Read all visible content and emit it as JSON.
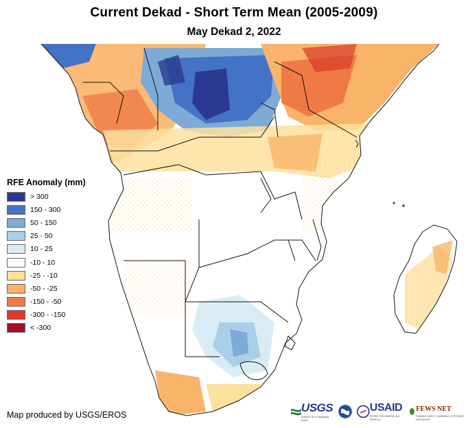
{
  "header": {
    "title": "Current Dekad - Short Term Mean (2005-2009)",
    "subtitle": "May Dekad 2, 2022"
  },
  "legend": {
    "title": "RFE Anomaly (mm)",
    "items": [
      {
        "label": "> 300",
        "color": "#2b3990"
      },
      {
        "label": "150 - 300",
        "color": "#4472c4"
      },
      {
        "label": "50 - 150",
        "color": "#7eaad6"
      },
      {
        "label": "25 - 50",
        "color": "#a9d0e8"
      },
      {
        "label": "10 - 25",
        "color": "#d9ecf5"
      },
      {
        "label": "-10 - 10",
        "color": "#ffffff"
      },
      {
        "label": "-25 - -10",
        "color": "#fde09e"
      },
      {
        "label": "-50 - -25",
        "color": "#f9b46a"
      },
      {
        "label": "-150 - -50",
        "color": "#f07a45"
      },
      {
        "label": "-300 - -150",
        "color": "#d93a2b"
      },
      {
        "label": "< -300",
        "color": "#a50f2a"
      }
    ]
  },
  "credit": "Map produced by USGS/EROS",
  "logos": {
    "usgs": "USGS",
    "usgs_tagline": "science for a changing world",
    "usaid": "USAID",
    "usaid_tagline": "FROM THE AMERICAN PEOPLE",
    "fews": "FEWS NET",
    "fews_tagline": "FAMINE EARLY WARNING SYSTEMS NETWORK"
  }
}
